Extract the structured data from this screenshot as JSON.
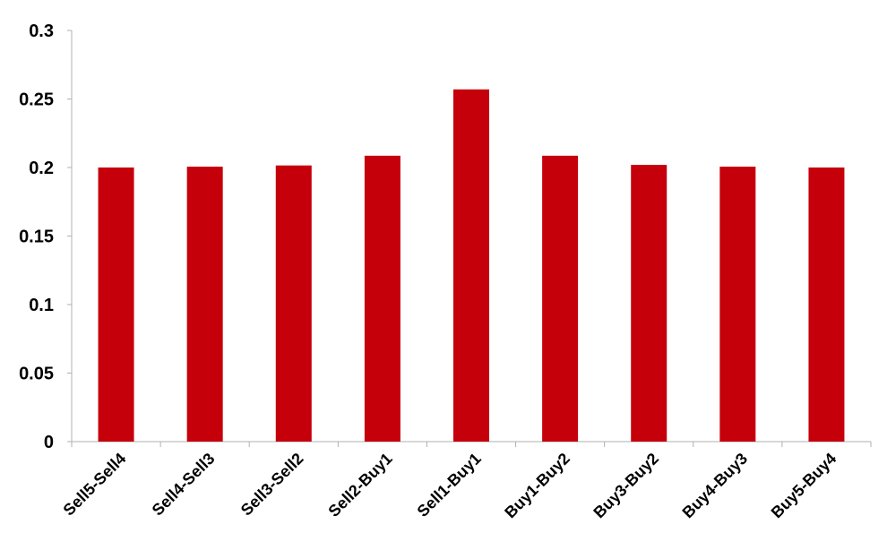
{
  "chart_data": {
    "type": "bar",
    "title": "",
    "xlabel": "",
    "ylabel": "",
    "categories": [
      "Sell5-Sell4",
      "Sell4-Sell3",
      "Sell3-Sell2",
      "Sell2-Buy1",
      "Sell1-Buy1",
      "Buy1-Buy2",
      "Buy3-Buy2",
      "Buy4-Buy3",
      "Buy5-Buy4"
    ],
    "values": [
      0.2,
      0.2006,
      0.2015,
      0.2086,
      0.257,
      0.2086,
      0.2019,
      0.2006,
      0.2
    ],
    "ylim": [
      0,
      0.3
    ],
    "yticks": [
      "0",
      "0.05",
      "0.1",
      "0.15",
      "0.2",
      "0.25",
      "0.3"
    ],
    "ytick_values": [
      0,
      0.05,
      0.1,
      0.15,
      0.2,
      0.25,
      0.3
    ],
    "grid": false,
    "legend": "none",
    "bar_color": "#c5000b",
    "axis_color": "#b0b0b0"
  }
}
